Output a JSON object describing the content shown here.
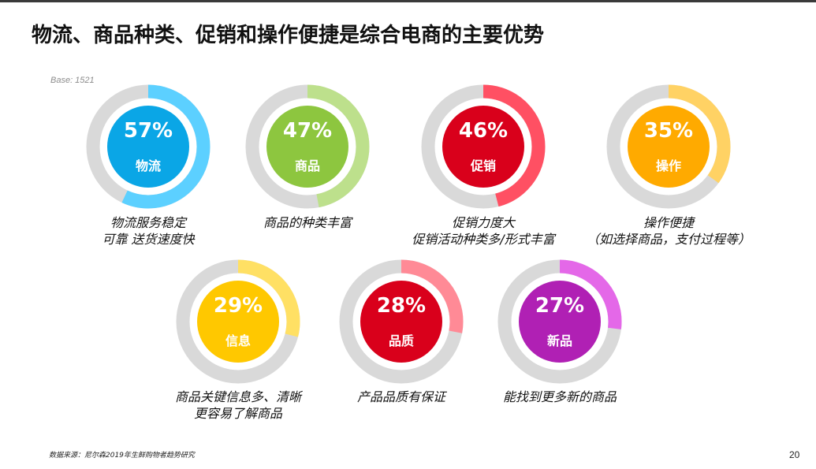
{
  "title": "物流、商品种类、促销和操作便捷是综合电商的主要优势",
  "base": "Base: 1521",
  "source": "数据来源：尼尔森2019年生鲜购物者趋势研究",
  "page_number": "20",
  "colors": {
    "track": "#d9d9d9",
    "background": "#ffffff"
  },
  "chart_data": {
    "type": "pie",
    "variant": "donut",
    "items": [
      {
        "label": "物流",
        "percent_label": "57%",
        "value": 57,
        "caption": [
          "物流服务稳定",
          "可靠 送货速度快"
        ],
        "inner_color": "#0aa6e6",
        "arc_color": "#5cd0ff"
      },
      {
        "label": "商品",
        "percent_label": "47%",
        "value": 47,
        "caption": [
          "商品的种类丰富"
        ],
        "inner_color": "#8dc63f",
        "arc_color": "#bde08c"
      },
      {
        "label": "促销",
        "percent_label": "46%",
        "value": 46,
        "caption": [
          "促销力度大",
          "促销活动种类多/形式丰富"
        ],
        "inner_color": "#d9001b",
        "arc_color": "#ff5063"
      },
      {
        "label": "操作",
        "percent_label": "35%",
        "value": 35,
        "caption": [
          "操作便捷",
          "（如选择商品，支付过程等）"
        ],
        "inner_color": "#ffaa00",
        "arc_color": "#ffd264"
      },
      {
        "label": "信息",
        "percent_label": "29%",
        "value": 29,
        "caption": [
          "商品关键信息多、清晰",
          "更容易了解商品"
        ],
        "inner_color": "#ffc800",
        "arc_color": "#ffe064"
      },
      {
        "label": "品质",
        "percent_label": "28%",
        "value": 28,
        "caption": [
          "产品品质有保证"
        ],
        "inner_color": "#d9001b",
        "arc_color": "#ff8a96"
      },
      {
        "label": "新品",
        "percent_label": "27%",
        "value": 27,
        "caption": [
          "能找到更多新的商品"
        ],
        "inner_color": "#b020b4",
        "arc_color": "#e468e8"
      }
    ]
  }
}
